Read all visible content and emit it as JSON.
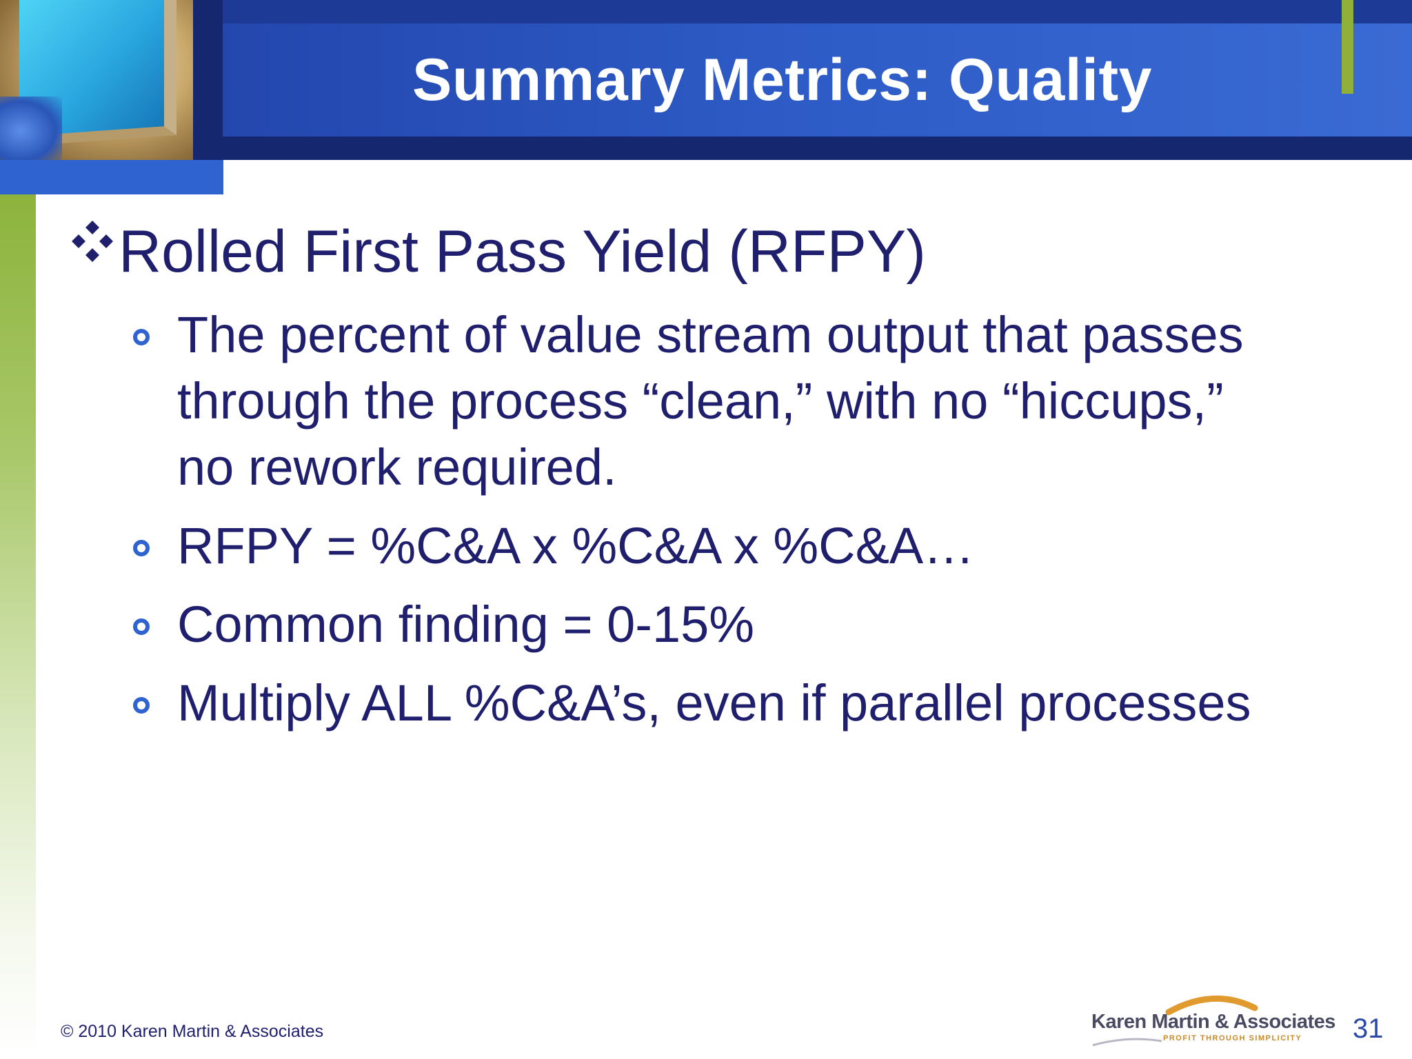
{
  "slide": {
    "title": "Summary Metrics: Quality",
    "main_bullet": "Rolled First Pass Yield (RFPY)",
    "sub_bullets": [
      {
        "lines": [
          "The percent of value stream output that passes",
          "through the process “clean,” with no “hiccups,”",
          "no rework required."
        ]
      },
      {
        "lines": [
          "RFPY = %C&A x %C&A x %C&A…"
        ]
      },
      {
        "lines": [
          "Common finding = 0-15%"
        ]
      },
      {
        "lines": [
          "Multiply ALL %C&A’s, even if parallel processes"
        ]
      }
    ]
  },
  "footer": {
    "copyright": "© 2010 Karen Martin & Associates",
    "logo_name": "Karen Martin & Associates",
    "logo_tagline": "PROFIT THROUGH SIMPLICITY",
    "page_number": "31"
  },
  "colors": {
    "title_text": "#ffffff",
    "body_text": "#1f1f6e",
    "header_blue": "#2347ad",
    "accent_green": "#8fb13a",
    "bullet_blue": "#2f63d0"
  },
  "icons": {
    "main_bullet": "four-diamond-bullet-icon",
    "sub_bullet": "ring-bullet-icon"
  }
}
